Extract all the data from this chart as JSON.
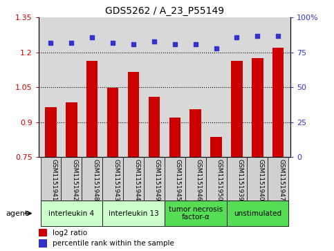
{
  "title": "GDS5262 / A_23_P55149",
  "samples": [
    "GSM1151941",
    "GSM1151942",
    "GSM1151948",
    "GSM1151943",
    "GSM1151944",
    "GSM1151949",
    "GSM1151945",
    "GSM1151946",
    "GSM1151950",
    "GSM1151939",
    "GSM1151940",
    "GSM1151947"
  ],
  "log2_ratio": [
    0.965,
    0.985,
    1.165,
    1.048,
    1.115,
    1.01,
    0.92,
    0.955,
    0.835,
    1.165,
    1.175,
    1.22
  ],
  "percentile": [
    82,
    82,
    86,
    82,
    81,
    83,
    81,
    81,
    78,
    86,
    87,
    87
  ],
  "bar_color": "#cc0000",
  "dot_color": "#3333cc",
  "ylim_left": [
    0.75,
    1.35
  ],
  "ylim_right": [
    0,
    100
  ],
  "yticks_left": [
    0.75,
    0.9,
    1.05,
    1.2,
    1.35
  ],
  "ytick_labels_left": [
    "0.75",
    "0.9",
    "1.05",
    "1.2",
    "1.35"
  ],
  "yticks_right": [
    0,
    25,
    50,
    75,
    100
  ],
  "ytick_labels_right": [
    "0",
    "25",
    "50",
    "75",
    "100%"
  ],
  "hlines": [
    0.9,
    1.05,
    1.2
  ],
  "agent_groups": [
    {
      "label": "interleukin 4",
      "start": 0,
      "end": 2,
      "color": "#ccffcc"
    },
    {
      "label": "interleukin 13",
      "start": 3,
      "end": 5,
      "color": "#ccffcc"
    },
    {
      "label": "tumor necrosis\nfactor-α",
      "start": 6,
      "end": 8,
      "color": "#55dd55"
    },
    {
      "label": "unstimulated",
      "start": 9,
      "end": 11,
      "color": "#55dd55"
    }
  ],
  "legend_bar_label": "log2 ratio",
  "legend_dot_label": "percentile rank within the sample",
  "agent_label": "agent",
  "tick_label_color_left": "#cc0000",
  "tick_label_color_right": "#3333cc",
  "bar_width": 0.55,
  "baseline": 0.75,
  "plot_bg": "#d8d8d8",
  "xticklabel_bg": "#d0d0d0"
}
